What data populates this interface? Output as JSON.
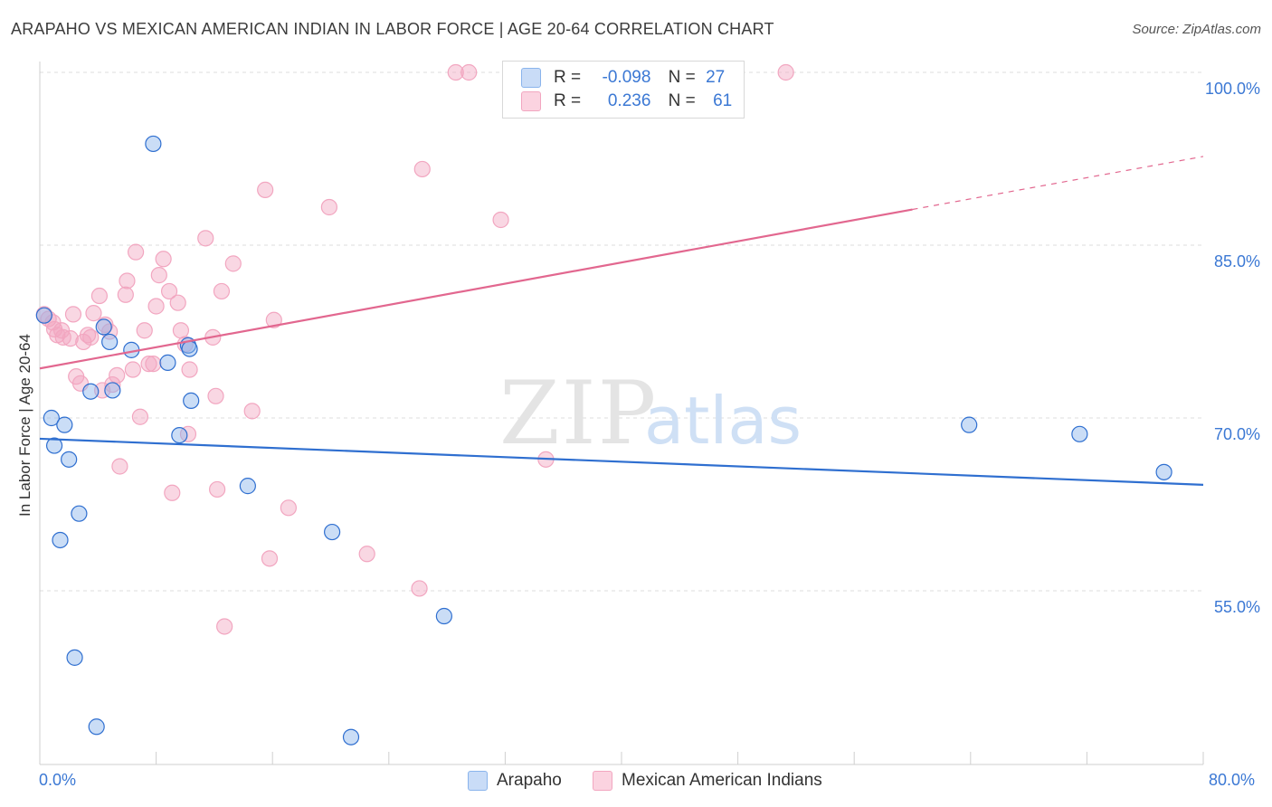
{
  "title": "ARAPAHO VS MEXICAN AMERICAN INDIAN IN LABOR FORCE | AGE 20-64 CORRELATION CHART",
  "source": "Source: ZipAtlas.com",
  "watermark": {
    "zip": "ZIP",
    "atlas": "atlas"
  },
  "legend_top": {
    "rows": [
      {
        "r_label": "R =",
        "r_value": "-0.098",
        "n_label": "N =",
        "n_value": "27"
      },
      {
        "r_label": "R =",
        "r_value": "0.236",
        "n_label": "N =",
        "n_value": "61"
      }
    ]
  },
  "chart_data": {
    "type": "scatter",
    "xlabel": "",
    "ylabel": "In Labor Force | Age 20-64",
    "xlim": [
      0,
      80
    ],
    "ylim": [
      40,
      102
    ],
    "x_tick_labels": [
      "0.0%",
      "80.0%"
    ],
    "y_ticks": [
      55,
      70,
      85,
      100
    ],
    "y_tick_labels": [
      "55.0%",
      "70.0%",
      "85.0%",
      "100.0%"
    ],
    "grid": "horizontal dashed",
    "legend": "bottom-center",
    "colors": {
      "arapaho": "#8ab4ec",
      "arapaho_line": "#2f6fd0",
      "mexican": "#f2a6c0",
      "mexican_line": "#e2678f"
    },
    "series": [
      {
        "name": "Arapaho",
        "r": -0.098,
        "n": 27,
        "trend": {
          "x": [
            0,
            80
          ],
          "y": [
            68.2,
            64.2
          ]
        },
        "points": [
          [
            0.3,
            78.9
          ],
          [
            1.0,
            67.6
          ],
          [
            0.8,
            70.0
          ],
          [
            1.7,
            69.4
          ],
          [
            2.0,
            66.4
          ],
          [
            2.7,
            61.7
          ],
          [
            1.4,
            59.4
          ],
          [
            3.5,
            72.3
          ],
          [
            4.4,
            77.9
          ],
          [
            4.8,
            76.6
          ],
          [
            5.0,
            72.4
          ],
          [
            6.3,
            75.9
          ],
          [
            7.8,
            93.8
          ],
          [
            8.8,
            74.8
          ],
          [
            9.6,
            68.5
          ],
          [
            10.2,
            76.3
          ],
          [
            10.3,
            76.0
          ],
          [
            10.4,
            71.5
          ],
          [
            14.3,
            64.1
          ],
          [
            20.1,
            60.1
          ],
          [
            27.8,
            52.8
          ],
          [
            2.4,
            49.2
          ],
          [
            3.9,
            43.2
          ],
          [
            21.4,
            42.3
          ],
          [
            63.9,
            69.4
          ],
          [
            71.5,
            68.6
          ],
          [
            77.3,
            65.3
          ]
        ]
      },
      {
        "name": "Mexican American Indians",
        "r": 0.236,
        "n": 61,
        "trend": {
          "x": [
            0,
            60
          ],
          "y": [
            74.3,
            88.1
          ]
        },
        "trend_dashed": {
          "x": [
            60,
            80
          ],
          "y": [
            88.1,
            92.7
          ]
        },
        "points": [
          [
            0.3,
            79.0
          ],
          [
            0.6,
            78.6
          ],
          [
            0.9,
            78.3
          ],
          [
            1.0,
            77.7
          ],
          [
            1.2,
            77.2
          ],
          [
            1.5,
            77.6
          ],
          [
            1.6,
            77.0
          ],
          [
            2.1,
            76.9
          ],
          [
            2.3,
            79.0
          ],
          [
            2.5,
            73.6
          ],
          [
            2.8,
            73.0
          ],
          [
            3.0,
            76.6
          ],
          [
            3.3,
            77.2
          ],
          [
            3.5,
            77.0
          ],
          [
            3.7,
            79.1
          ],
          [
            4.1,
            80.6
          ],
          [
            4.3,
            72.4
          ],
          [
            4.5,
            78.1
          ],
          [
            4.8,
            77.5
          ],
          [
            5.0,
            72.9
          ],
          [
            5.3,
            73.7
          ],
          [
            5.5,
            65.8
          ],
          [
            5.9,
            80.7
          ],
          [
            6.0,
            81.9
          ],
          [
            6.4,
            74.2
          ],
          [
            6.6,
            84.4
          ],
          [
            6.9,
            70.1
          ],
          [
            7.2,
            77.6
          ],
          [
            7.5,
            74.7
          ],
          [
            7.8,
            74.7
          ],
          [
            8.0,
            79.7
          ],
          [
            8.2,
            82.4
          ],
          [
            8.5,
            83.8
          ],
          [
            8.9,
            81.0
          ],
          [
            9.1,
            63.5
          ],
          [
            9.5,
            80.0
          ],
          [
            9.7,
            77.6
          ],
          [
            10.0,
            76.4
          ],
          [
            10.2,
            68.6
          ],
          [
            10.3,
            74.2
          ],
          [
            11.4,
            85.6
          ],
          [
            11.9,
            77.0
          ],
          [
            12.1,
            71.9
          ],
          [
            12.2,
            63.8
          ],
          [
            12.5,
            81.0
          ],
          [
            12.7,
            51.9
          ],
          [
            13.3,
            83.4
          ],
          [
            14.6,
            70.6
          ],
          [
            15.5,
            89.8
          ],
          [
            15.8,
            57.8
          ],
          [
            16.1,
            78.5
          ],
          [
            17.1,
            62.2
          ],
          [
            19.9,
            88.3
          ],
          [
            22.5,
            58.2
          ],
          [
            26.1,
            55.2
          ],
          [
            26.3,
            91.6
          ],
          [
            28.6,
            100.0
          ],
          [
            29.5,
            100.0
          ],
          [
            31.7,
            87.2
          ],
          [
            34.8,
            66.4
          ],
          [
            51.3,
            100.0
          ]
        ]
      }
    ]
  }
}
